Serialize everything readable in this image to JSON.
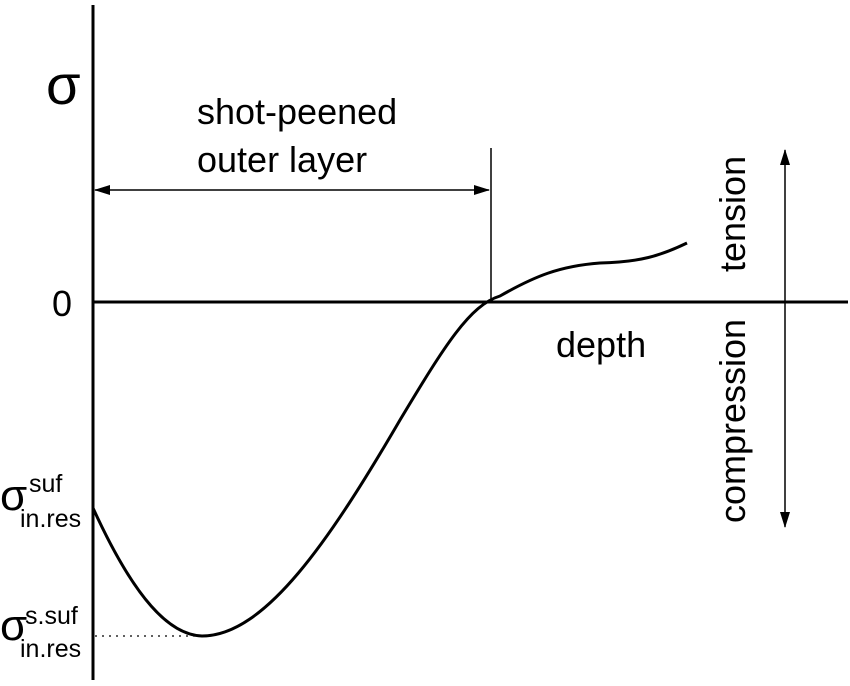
{
  "axis": {
    "y_symbol": "σ",
    "zero_label": "0",
    "x_label": "depth"
  },
  "layer": {
    "label_line1": "shot-peened",
    "label_line2": "outer layer"
  },
  "stress_direction": {
    "tension": "tension",
    "compression": "compression"
  },
  "markers": {
    "surface": {
      "symbol": "σ",
      "superscript": "suf",
      "subscript": "in.res"
    },
    "sub_surface": {
      "symbol": "σ",
      "superscript": "s.suf",
      "subscript": "in.res"
    }
  },
  "colors": {
    "ink": "#000000",
    "background": "#ffffff"
  }
}
